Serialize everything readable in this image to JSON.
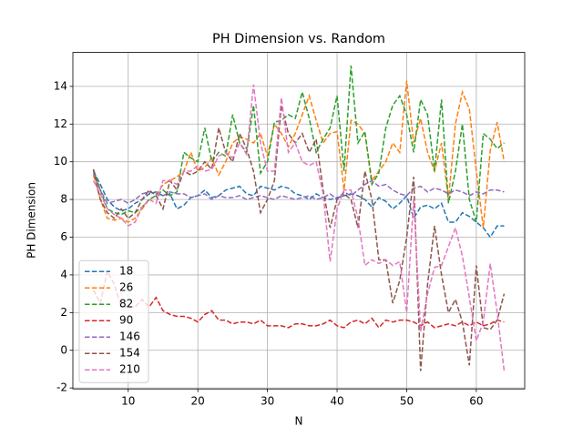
{
  "chart_data": {
    "type": "line",
    "title": "PH Dimension vs. Random",
    "x_label": "N",
    "y_label": "PH Dimension",
    "x": [
      5,
      6,
      7,
      8,
      9,
      10,
      11,
      12,
      13,
      14,
      15,
      16,
      17,
      18,
      19,
      20,
      21,
      22,
      23,
      24,
      25,
      26,
      27,
      28,
      29,
      30,
      31,
      32,
      33,
      34,
      35,
      36,
      37,
      38,
      39,
      40,
      41,
      42,
      43,
      44,
      45,
      46,
      47,
      48,
      49,
      50,
      51,
      52,
      53,
      54,
      55,
      56,
      57,
      58,
      59,
      60,
      61,
      62,
      63,
      64
    ],
    "xlim": [
      2.05,
      66.95
    ],
    "xticks": [
      10,
      20,
      30,
      40,
      50,
      60
    ],
    "ylim": [
      -2.05,
      15.8
    ],
    "yticks": [
      -2,
      0,
      2,
      4,
      6,
      8,
      10,
      12,
      14
    ],
    "grid": true,
    "legend": "lower left",
    "series": [
      {
        "name": "18",
        "color": "#1f77b4",
        "values": [
          9.5,
          8.8,
          8.0,
          7.6,
          7.4,
          7.5,
          7.8,
          8.0,
          8.3,
          8.4,
          8.2,
          8.3,
          7.5,
          7.7,
          8.1,
          8.2,
          8.5,
          8.1,
          8.2,
          8.5,
          8.6,
          8.7,
          8.3,
          8.2,
          8.7,
          8.6,
          8.5,
          8.7,
          8.6,
          8.3,
          8.2,
          8.0,
          8.3,
          8.1,
          8.0,
          8.1,
          8.2,
          8.3,
          8.2,
          8.0,
          7.6,
          8.1,
          7.9,
          7.5,
          7.8,
          8.2,
          7.0,
          7.6,
          7.7,
          7.5,
          7.8,
          6.8,
          6.8,
          7.3,
          7.1,
          6.8,
          6.5,
          6.0,
          6.6,
          6.6
        ]
      },
      {
        "name": "26",
        "color": "#ff7f0e",
        "values": [
          9.3,
          8.0,
          7.0,
          6.9,
          7.0,
          6.8,
          7.0,
          7.5,
          8.0,
          8.2,
          8.8,
          9.0,
          9.2,
          9.5,
          10.5,
          9.5,
          9.7,
          10.2,
          9.3,
          10.0,
          11.0,
          11.3,
          11.2,
          11.0,
          11.5,
          10.3,
          12.0,
          11.5,
          10.8,
          11.5,
          12.5,
          13.5,
          12.2,
          11.0,
          11.5,
          11.6,
          8.5,
          12.2,
          12.0,
          11.5,
          9.0,
          9.5,
          10.0,
          11.0,
          10.5,
          14.3,
          11.0,
          12.3,
          10.5,
          9.5,
          11.0,
          8.0,
          12.0,
          13.7,
          12.8,
          9.5,
          6.5,
          10.6,
          12.1,
          10.0
        ]
      },
      {
        "name": "82",
        "color": "#2ca02c",
        "values": [
          9.6,
          8.5,
          7.5,
          7.3,
          7.2,
          7.4,
          7.3,
          7.6,
          8.0,
          8.2,
          8.5,
          8.2,
          8.4,
          10.5,
          10.2,
          10.0,
          11.8,
          10.0,
          10.5,
          10.3,
          12.5,
          11.0,
          10.5,
          13.0,
          9.4,
          10.0,
          12.1,
          12.2,
          12.5,
          12.3,
          13.7,
          12.3,
          10.5,
          11.2,
          11.8,
          13.5,
          9.5,
          15.1,
          11.0,
          11.6,
          8.8,
          9.4,
          11.8,
          13.0,
          13.5,
          12.5,
          10.5,
          13.3,
          12.5,
          9.5,
          13.3,
          7.8,
          9.5,
          12.0,
          8.0,
          6.8,
          11.5,
          11.2,
          10.7,
          11.0
        ]
      },
      {
        "name": "90",
        "color": "#d62728",
        "values": [
          3.2,
          2.5,
          4.2,
          3.5,
          2.3,
          2.3,
          2.3,
          2.7,
          2.3,
          2.8,
          2.1,
          1.9,
          1.8,
          1.8,
          1.7,
          1.5,
          1.9,
          2.1,
          1.6,
          1.6,
          1.4,
          1.5,
          1.5,
          1.4,
          1.6,
          1.3,
          1.3,
          1.3,
          1.2,
          1.4,
          1.4,
          1.3,
          1.3,
          1.4,
          1.6,
          1.3,
          1.2,
          1.5,
          1.6,
          1.4,
          1.7,
          1.2,
          1.6,
          1.5,
          1.6,
          1.6,
          1.5,
          1.3,
          1.5,
          1.2,
          1.3,
          1.4,
          1.3,
          1.5,
          1.3,
          1.5,
          1.3,
          1.4,
          1.6,
          1.5
        ]
      },
      {
        "name": "146",
        "color": "#9467bd",
        "values": [
          9.4,
          8.5,
          7.8,
          7.9,
          8.0,
          7.8,
          8.0,
          8.3,
          8.4,
          8.3,
          8.2,
          8.4,
          8.3,
          8.3,
          8.1,
          8.2,
          8.3,
          8.0,
          8.2,
          8.1,
          8.1,
          8.2,
          8.0,
          8.1,
          8.2,
          8.1,
          8.0,
          8.2,
          8.1,
          8.0,
          8.1,
          8.2,
          8.0,
          8.1,
          8.3,
          8.0,
          8.4,
          8.2,
          8.5,
          8.8,
          9.0,
          8.7,
          8.8,
          8.5,
          8.3,
          8.2,
          8.6,
          8.7,
          8.4,
          8.6,
          8.5,
          8.3,
          8.5,
          8.4,
          8.2,
          8.4,
          8.3,
          8.5,
          8.5,
          8.4
        ]
      },
      {
        "name": "154",
        "color": "#8c564b",
        "values": [
          9.6,
          8.0,
          7.3,
          7.0,
          7.5,
          7.0,
          7.3,
          8.0,
          8.5,
          8.2,
          7.5,
          9.0,
          8.5,
          9.5,
          9.3,
          9.5,
          10.0,
          9.6,
          11.8,
          10.5,
          10.0,
          11.5,
          10.7,
          9.5,
          7.3,
          8.0,
          9.0,
          13.0,
          11.5,
          11.0,
          11.5,
          10.5,
          11.2,
          8.5,
          6.5,
          8.0,
          8.3,
          8.0,
          6.5,
          9.5,
          8.0,
          4.8,
          4.8,
          2.5,
          3.7,
          6.0,
          9.2,
          -1.1,
          3.5,
          6.6,
          4.0,
          2.0,
          2.7,
          1.5,
          -0.8,
          4.5,
          1.2,
          1.1,
          1.6,
          3.0
        ]
      },
      {
        "name": "210",
        "color": "#e377c2",
        "values": [
          9.0,
          8.3,
          7.5,
          7.2,
          7.0,
          6.6,
          6.8,
          7.6,
          8.0,
          7.8,
          9.0,
          9.0,
          8.8,
          9.5,
          9.5,
          9.8,
          9.5,
          9.6,
          10.3,
          10.5,
          10.2,
          11.0,
          10.4,
          14.1,
          11.0,
          9.5,
          9.5,
          13.4,
          10.5,
          11.0,
          10.0,
          9.8,
          10.0,
          8.3,
          4.7,
          7.5,
          8.5,
          8.5,
          7.0,
          4.5,
          4.8,
          4.6,
          4.8,
          4.5,
          4.7,
          2.0,
          8.0,
          1.0,
          3.0,
          4.4,
          4.5,
          5.5,
          6.5,
          5.0,
          2.8,
          0.5,
          1.5,
          4.6,
          2.0,
          -1.1
        ]
      }
    ]
  }
}
